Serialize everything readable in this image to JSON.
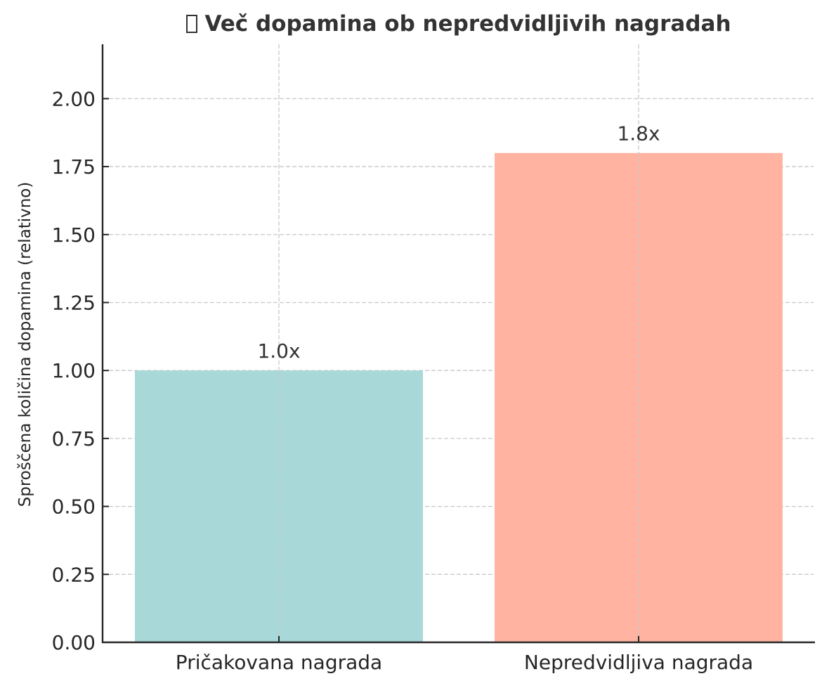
{
  "title": "Več dopamina ob nepredvidljivih nagradah",
  "title_icon": "missing-glyph-icon",
  "chart_data": {
    "type": "bar",
    "title": "Več dopamina ob nepredvidljivih nagradah",
    "xlabel": "",
    "ylabel": "Sproščena količina dopamina (relativno)",
    "categories": [
      "Pričakovana nagrada",
      "Nepredvidljiva nagrada"
    ],
    "values": [
      1.0,
      1.8
    ],
    "bar_labels": [
      "1.0x",
      "1.8x"
    ],
    "colors": [
      "#a8d8d8",
      "#ffb3a0"
    ],
    "ylim": [
      0,
      2.2
    ],
    "yticks": [
      "0.00",
      "0.25",
      "0.50",
      "0.75",
      "1.00",
      "1.25",
      "1.50",
      "1.75",
      "2.00"
    ],
    "grid": true,
    "legend": null
  }
}
